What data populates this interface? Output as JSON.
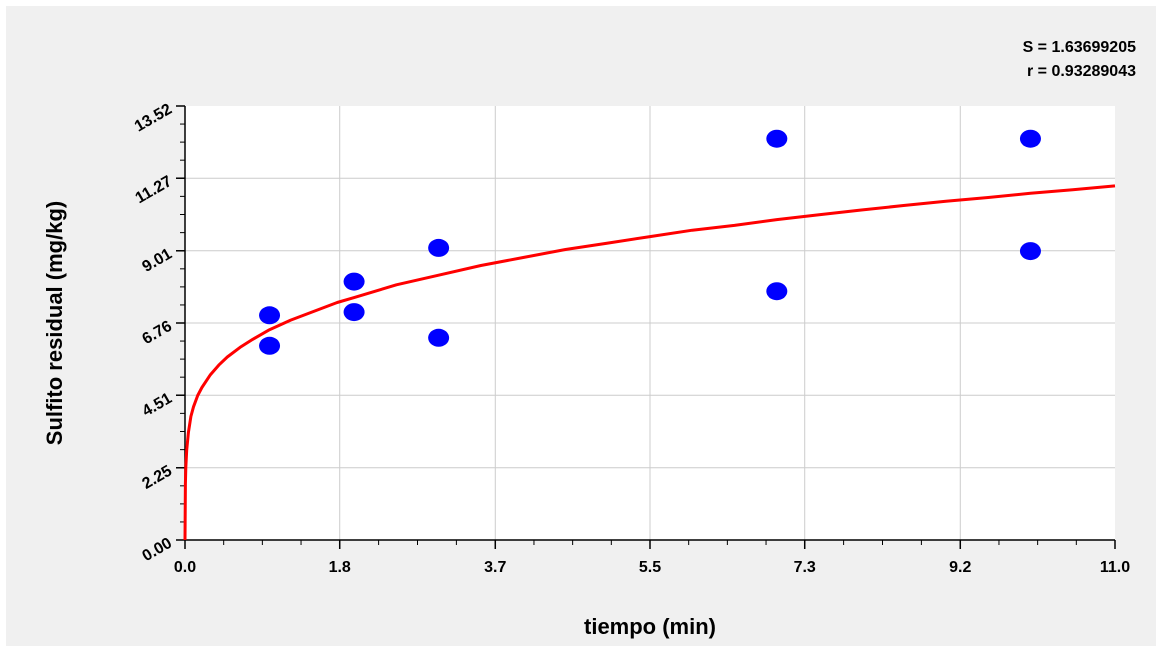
{
  "chart_data": {
    "type": "scatter",
    "xlabel": "tiempo (min)",
    "ylabel": "Sulfito residual (mg/kg)",
    "xlim": [
      0,
      11.0
    ],
    "ylim": [
      0,
      13.52
    ],
    "x_ticks": [
      "0.0",
      "1.8",
      "3.7",
      "5.5",
      "7.3",
      "9.2",
      "11.0"
    ],
    "x_tick_values": [
      0.0,
      1.83,
      3.67,
      5.5,
      7.33,
      9.17,
      11.0
    ],
    "y_ticks": [
      "0.00",
      "2.25",
      "4.51",
      "6.76",
      "9.01",
      "11.27",
      "13.52"
    ],
    "y_tick_values": [
      0.0,
      2.25,
      4.51,
      6.76,
      9.01,
      11.27,
      13.52
    ],
    "grid": true,
    "stats": {
      "s_label": "S = 1.63699205",
      "r_label": "r = 0.93289043"
    },
    "series": [
      {
        "type": "scatter",
        "color": "#0000ff",
        "x": [
          1,
          1,
          2,
          2,
          3,
          3,
          7,
          7,
          10,
          10
        ],
        "y": [
          7.0,
          6.05,
          8.05,
          7.1,
          9.1,
          6.3,
          12.5,
          7.75,
          12.5,
          9.0
        ]
      },
      {
        "type": "line",
        "color": "#ff0000",
        "x": [
          0.0,
          0.005,
          0.01,
          0.02,
          0.04,
          0.07,
          0.1,
          0.15,
          0.2,
          0.3,
          0.4,
          0.5,
          0.65,
          0.8,
          1.0,
          1.25,
          1.5,
          1.8,
          2.0,
          2.5,
          3.0,
          3.5,
          4.0,
          4.5,
          5.0,
          5.5,
          6.0,
          6.5,
          7.0,
          7.5,
          8.0,
          8.5,
          9.0,
          9.5,
          10.0,
          10.5,
          11.0
        ],
        "y": [
          0.0,
          1.75,
          2.25,
          2.8,
          3.35,
          3.85,
          4.15,
          4.5,
          4.75,
          5.15,
          5.45,
          5.7,
          6.0,
          6.25,
          6.55,
          6.85,
          7.1,
          7.4,
          7.55,
          7.95,
          8.25,
          8.55,
          8.8,
          9.05,
          9.25,
          9.45,
          9.65,
          9.8,
          9.98,
          10.13,
          10.28,
          10.42,
          10.55,
          10.67,
          10.8,
          10.91,
          11.03
        ]
      }
    ]
  }
}
